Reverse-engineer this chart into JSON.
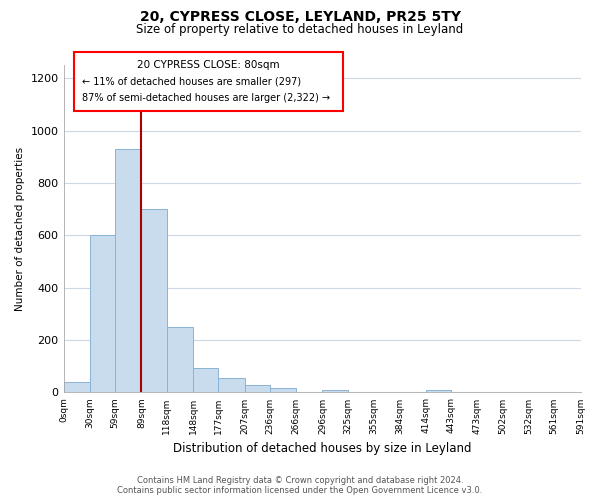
{
  "title": "20, CYPRESS CLOSE, LEYLAND, PR25 5TY",
  "subtitle": "Size of property relative to detached houses in Leyland",
  "xlabel": "Distribution of detached houses by size in Leyland",
  "ylabel": "Number of detached properties",
  "bin_labels": [
    "0sqm",
    "30sqm",
    "59sqm",
    "89sqm",
    "118sqm",
    "148sqm",
    "177sqm",
    "207sqm",
    "236sqm",
    "266sqm",
    "296sqm",
    "325sqm",
    "355sqm",
    "384sqm",
    "414sqm",
    "443sqm",
    "473sqm",
    "502sqm",
    "532sqm",
    "561sqm",
    "591sqm"
  ],
  "bar_values": [
    40,
    600,
    930,
    700,
    250,
    95,
    55,
    30,
    18,
    0,
    10,
    0,
    0,
    0,
    10,
    0,
    0,
    0,
    0,
    0
  ],
  "bar_color": "#c8dcee",
  "bar_edge_color": "#8ab4d4",
  "vline_x": 89,
  "vline_color": "#aa0000",
  "ylim": [
    0,
    1250
  ],
  "yticks": [
    0,
    200,
    400,
    600,
    800,
    1000,
    1200
  ],
  "annotation_title": "20 CYPRESS CLOSE: 80sqm",
  "annotation_line1": "← 11% of detached houses are smaller (297)",
  "annotation_line2": "87% of semi-detached houses are larger (2,322) →",
  "footer_line1": "Contains HM Land Registry data © Crown copyright and database right 2024.",
  "footer_line2": "Contains public sector information licensed under the Open Government Licence v3.0.",
  "background_color": "#ffffff",
  "grid_color": "#ccd8e8"
}
